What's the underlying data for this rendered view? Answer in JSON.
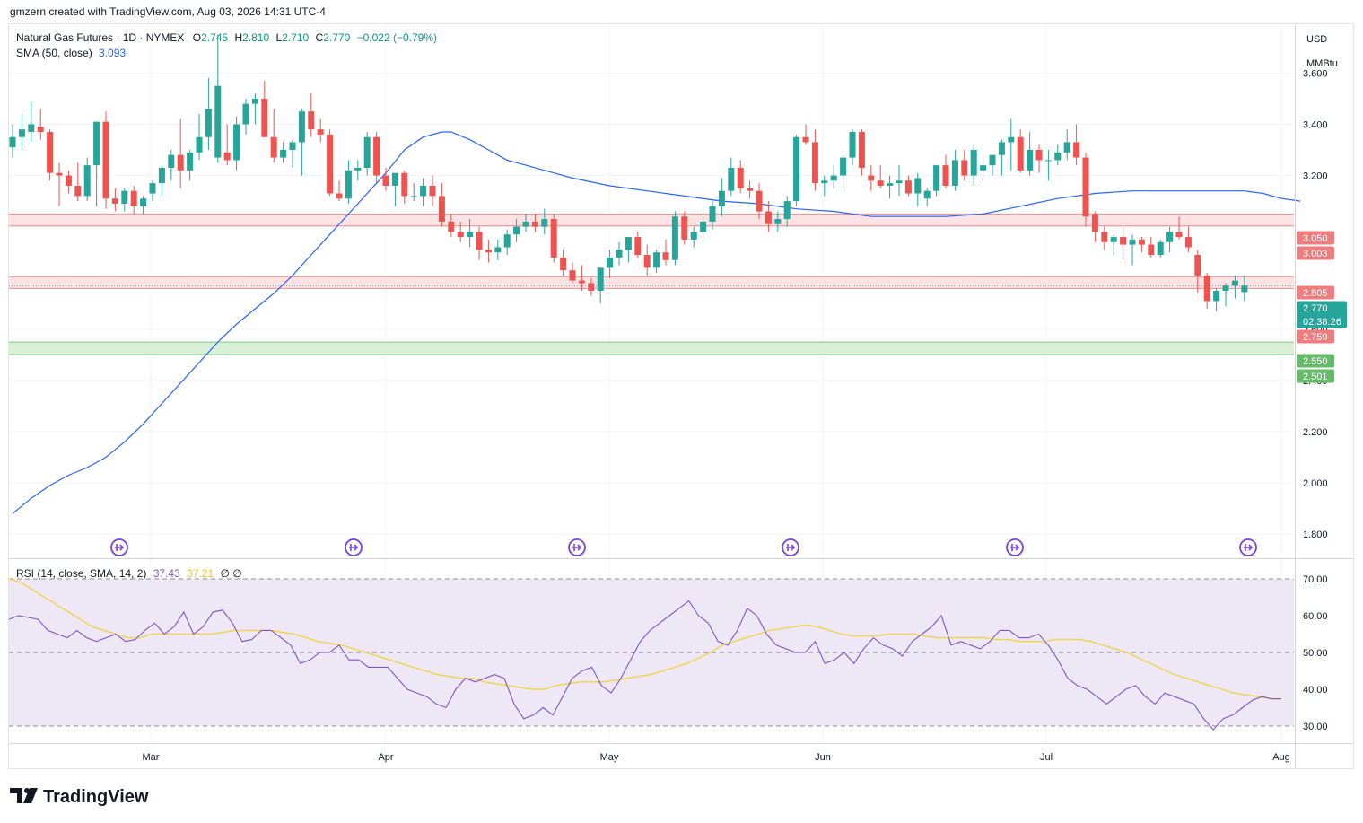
{
  "header": {
    "attribution": "gmzern created with TradingView.com, Aug 03, 2026 14:31 UTC-4",
    "symbol": "Natural Gas Futures · 1D · NYMEX",
    "o_label": "O",
    "o_value": "2.745",
    "h_label": "H",
    "h_value": "2.810",
    "l_label": "L",
    "l_value": "2.710",
    "c_label": "C",
    "c_value": "2.770",
    "change": "−0.022 (−0.79%)",
    "sma_label": "SMA (50, close)",
    "sma_value": "3.093",
    "rsi_label": "RSI (14, close, SMA, 14, 2)",
    "rsi_value": "37.43",
    "rsi_sma_value": "37.21",
    "rsi_extra": "∅  ∅"
  },
  "axis": {
    "currency": "USD",
    "unit": "MMBtu"
  },
  "colors": {
    "up": "#26a69a",
    "down": "#ef5350",
    "sma": "#2962ff",
    "rsi": "#7e57c2",
    "rsi_sma": "#f0d34a",
    "rsi_band": "#ede7f6",
    "resistance_zone": "#fde3e3",
    "support_zone": "#d7f0d6"
  },
  "footer": {
    "logo": "TradingView"
  },
  "events": {
    "icon": "arrow-right-circle-icon",
    "count": 6
  },
  "chart_data": {
    "type": "candlestick",
    "ylim": [
      1.72,
      3.78
    ],
    "yticks": [
      1.8,
      2.0,
      2.2,
      2.4,
      2.6,
      3.2,
      3.4,
      3.6
    ],
    "xticks": [
      "Mar",
      "Apr",
      "May",
      "Jun",
      "Jul",
      "Aug"
    ],
    "price_labels": [
      {
        "value": 3.05,
        "text": "3.050",
        "kind": "resistance"
      },
      {
        "value": 3.003,
        "text": "3.003",
        "kind": "resistance"
      },
      {
        "value": 2.805,
        "text": "2.805",
        "kind": "resistance"
      },
      {
        "value": 2.77,
        "text": "2.770",
        "kind": "last",
        "sub": "02:38:26"
      },
      {
        "value": 2.759,
        "text": "2.759",
        "kind": "resistance"
      },
      {
        "value": 2.55,
        "text": "2.550",
        "kind": "support"
      },
      {
        "value": 2.501,
        "text": "2.501",
        "kind": "support"
      }
    ],
    "zones": [
      {
        "from": 3.003,
        "to": 3.05,
        "kind": "resistance"
      },
      {
        "from": 2.759,
        "to": 2.805,
        "kind": "resistance"
      },
      {
        "from": 2.501,
        "to": 2.55,
        "kind": "support"
      }
    ],
    "candles_ohlc": [
      [
        3.31,
        3.4,
        3.27,
        3.35
      ],
      [
        3.35,
        3.44,
        3.3,
        3.38
      ],
      [
        3.37,
        3.49,
        3.33,
        3.4
      ],
      [
        3.39,
        3.46,
        3.34,
        3.37
      ],
      [
        3.37,
        3.38,
        3.18,
        3.21
      ],
      [
        3.21,
        3.25,
        3.08,
        3.2
      ],
      [
        3.2,
        3.22,
        3.13,
        3.16
      ],
      [
        3.16,
        3.25,
        3.1,
        3.12
      ],
      [
        3.12,
        3.27,
        3.1,
        3.24
      ],
      [
        3.24,
        3.26,
        3.08,
        3.41
      ],
      [
        3.41,
        3.45,
        3.07,
        3.11
      ],
      [
        3.11,
        3.15,
        3.06,
        3.09
      ],
      [
        3.09,
        3.15,
        3.06,
        3.14
      ],
      [
        3.14,
        3.16,
        3.05,
        3.08
      ],
      [
        3.08,
        3.12,
        3.05,
        3.11
      ],
      [
        3.13,
        3.18,
        3.1,
        3.17
      ],
      [
        3.17,
        3.24,
        3.12,
        3.23
      ],
      [
        3.23,
        3.3,
        3.18,
        3.28
      ],
      [
        3.28,
        3.42,
        3.15,
        3.22
      ],
      [
        3.22,
        3.3,
        3.18,
        3.29
      ],
      [
        3.29,
        3.44,
        3.26,
        3.35
      ],
      [
        3.35,
        3.58,
        3.3,
        3.46
      ],
      [
        3.27,
        3.75,
        3.25,
        3.55
      ],
      [
        3.29,
        3.4,
        3.24,
        3.26
      ],
      [
        3.26,
        3.43,
        3.22,
        3.4
      ],
      [
        3.4,
        3.5,
        3.36,
        3.48
      ],
      [
        3.48,
        3.52,
        3.4,
        3.5
      ],
      [
        3.5,
        3.57,
        3.35,
        3.35
      ],
      [
        3.35,
        3.46,
        3.25,
        3.27
      ],
      [
        3.27,
        3.33,
        3.25,
        3.3
      ],
      [
        3.3,
        3.34,
        3.23,
        3.33
      ],
      [
        3.33,
        3.46,
        3.2,
        3.45
      ],
      [
        3.45,
        3.52,
        3.35,
        3.38
      ],
      [
        3.38,
        3.42,
        3.33,
        3.36
      ],
      [
        3.36,
        3.38,
        3.12,
        3.13
      ],
      [
        3.13,
        3.18,
        3.1,
        3.11
      ],
      [
        3.11,
        3.26,
        3.09,
        3.22
      ],
      [
        3.22,
        3.26,
        3.18,
        3.23
      ],
      [
        3.23,
        3.37,
        3.2,
        3.35
      ],
      [
        3.35,
        3.37,
        3.17,
        3.2
      ],
      [
        3.2,
        3.23,
        3.14,
        3.16
      ],
      [
        3.16,
        3.19,
        3.08,
        3.21
      ],
      [
        3.21,
        3.22,
        3.09,
        3.12
      ],
      [
        3.12,
        3.17,
        3.1,
        3.12
      ],
      [
        3.12,
        3.19,
        3.08,
        3.16
      ],
      [
        3.16,
        3.2,
        3.08,
        3.12
      ],
      [
        3.12,
        3.17,
        3.0,
        3.02
      ],
      [
        3.02,
        3.05,
        2.96,
        2.98
      ],
      [
        2.98,
        3.02,
        2.94,
        2.96
      ],
      [
        2.96,
        3.03,
        2.92,
        2.98
      ],
      [
        2.98,
        3.0,
        2.87,
        2.91
      ],
      [
        2.91,
        2.95,
        2.86,
        2.9
      ],
      [
        2.9,
        2.95,
        2.87,
        2.92
      ],
      [
        2.92,
        2.99,
        2.89,
        2.97
      ],
      [
        2.97,
        3.03,
        2.94,
        3.0
      ],
      [
        3.0,
        3.05,
        2.98,
        3.02
      ],
      [
        3.02,
        3.05,
        2.98,
        3.0
      ],
      [
        3.0,
        3.07,
        2.97,
        3.03
      ],
      [
        3.03,
        3.05,
        2.86,
        2.88
      ],
      [
        2.88,
        2.91,
        2.81,
        2.83
      ],
      [
        2.83,
        2.86,
        2.78,
        2.79
      ],
      [
        2.79,
        2.85,
        2.75,
        2.78
      ],
      [
        2.78,
        2.8,
        2.73,
        2.75
      ],
      [
        2.75,
        2.83,
        2.7,
        2.84
      ],
      [
        2.84,
        2.91,
        2.8,
        2.88
      ],
      [
        2.88,
        2.94,
        2.85,
        2.91
      ],
      [
        2.91,
        2.96,
        2.86,
        2.96
      ],
      [
        2.96,
        2.98,
        2.88,
        2.89
      ],
      [
        2.89,
        2.93,
        2.81,
        2.84
      ],
      [
        2.84,
        2.91,
        2.82,
        2.9
      ],
      [
        2.9,
        2.95,
        2.85,
        2.87
      ],
      [
        2.87,
        3.06,
        2.85,
        3.04
      ],
      [
        3.04,
        3.06,
        2.93,
        2.95
      ],
      [
        2.95,
        3.0,
        2.92,
        2.98
      ],
      [
        2.98,
        3.04,
        2.94,
        3.02
      ],
      [
        3.02,
        3.1,
        2.99,
        3.08
      ],
      [
        3.08,
        3.19,
        3.04,
        3.14
      ],
      [
        3.14,
        3.27,
        3.12,
        3.23
      ],
      [
        3.23,
        3.26,
        3.13,
        3.15
      ],
      [
        3.15,
        3.18,
        3.11,
        3.14
      ],
      [
        3.14,
        3.17,
        3.03,
        3.06
      ],
      [
        3.06,
        3.1,
        2.98,
        3.01
      ],
      [
        3.01,
        3.06,
        2.98,
        3.03
      ],
      [
        3.03,
        3.12,
        3.0,
        3.1
      ],
      [
        3.1,
        3.36,
        3.08,
        3.35
      ],
      [
        3.35,
        3.4,
        3.32,
        3.33
      ],
      [
        3.33,
        3.38,
        3.14,
        3.17
      ],
      [
        3.17,
        3.2,
        3.12,
        3.18
      ],
      [
        3.18,
        3.24,
        3.15,
        3.2
      ],
      [
        3.2,
        3.28,
        3.15,
        3.27
      ],
      [
        3.27,
        3.38,
        3.24,
        3.37
      ],
      [
        3.37,
        3.38,
        3.2,
        3.23
      ],
      [
        3.2,
        3.24,
        3.14,
        3.18
      ],
      [
        3.18,
        3.24,
        3.15,
        3.16
      ],
      [
        3.16,
        3.2,
        3.11,
        3.17
      ],
      [
        3.17,
        3.24,
        3.12,
        3.18
      ],
      [
        3.18,
        3.2,
        3.12,
        3.13
      ],
      [
        3.13,
        3.21,
        3.08,
        3.19
      ],
      [
        3.11,
        3.15,
        3.08,
        3.14
      ],
      [
        3.14,
        3.22,
        3.12,
        3.24
      ],
      [
        3.24,
        3.28,
        3.15,
        3.16
      ],
      [
        3.16,
        3.3,
        3.14,
        3.26
      ],
      [
        3.26,
        3.3,
        3.18,
        3.2
      ],
      [
        3.2,
        3.32,
        3.16,
        3.3
      ],
      [
        3.22,
        3.27,
        3.18,
        3.24
      ],
      [
        3.24,
        3.28,
        3.2,
        3.28
      ],
      [
        3.28,
        3.34,
        3.2,
        3.33
      ],
      [
        3.33,
        3.42,
        3.22,
        3.35
      ],
      [
        3.35,
        3.38,
        3.21,
        3.22
      ],
      [
        3.22,
        3.37,
        3.2,
        3.3
      ],
      [
        3.3,
        3.32,
        3.21,
        3.26
      ],
      [
        3.26,
        3.3,
        3.18,
        3.26
      ],
      [
        3.26,
        3.32,
        3.24,
        3.29
      ],
      [
        3.29,
        3.38,
        3.26,
        3.33
      ],
      [
        3.33,
        3.4,
        3.24,
        3.27
      ],
      [
        3.27,
        3.29,
        3.0,
        3.04
      ],
      [
        3.05,
        3.06,
        2.94,
        2.98
      ],
      [
        2.98,
        3.0,
        2.91,
        2.94
      ],
      [
        2.94,
        2.97,
        2.89,
        2.96
      ],
      [
        2.96,
        3.0,
        2.87,
        2.93
      ],
      [
        2.93,
        2.97,
        2.85,
        2.95
      ],
      [
        2.95,
        2.96,
        2.9,
        2.93
      ],
      [
        2.93,
        2.96,
        2.88,
        2.89
      ],
      [
        2.89,
        2.95,
        2.88,
        2.94
      ],
      [
        2.94,
        3.0,
        2.9,
        2.98
      ],
      [
        2.98,
        3.04,
        2.95,
        2.96
      ],
      [
        2.96,
        3.0,
        2.9,
        2.92
      ],
      [
        2.89,
        2.91,
        2.74,
        2.81
      ],
      [
        2.81,
        2.82,
        2.68,
        2.71
      ],
      [
        2.71,
        2.76,
        2.67,
        2.75
      ],
      [
        2.75,
        2.78,
        2.69,
        2.77
      ],
      [
        2.77,
        2.81,
        2.72,
        2.79
      ],
      [
        2.745,
        2.81,
        2.71,
        2.77
      ]
    ],
    "sma50": [
      [
        0,
        1.88
      ],
      [
        2,
        1.94
      ],
      [
        4,
        1.99
      ],
      [
        6,
        2.03
      ],
      [
        8,
        2.06
      ],
      [
        10,
        2.1
      ],
      [
        12,
        2.16
      ],
      [
        14,
        2.23
      ],
      [
        16,
        2.31
      ],
      [
        18,
        2.39
      ],
      [
        20,
        2.47
      ],
      [
        22,
        2.55
      ],
      [
        24,
        2.62
      ],
      [
        26,
        2.68
      ],
      [
        28,
        2.74
      ],
      [
        30,
        2.81
      ],
      [
        32,
        2.89
      ],
      [
        34,
        2.97
      ],
      [
        36,
        3.05
      ],
      [
        38,
        3.13
      ],
      [
        40,
        3.21
      ],
      [
        42,
        3.3
      ],
      [
        44,
        3.35
      ],
      [
        46,
        3.37
      ],
      [
        47,
        3.37
      ],
      [
        49,
        3.34
      ],
      [
        51,
        3.3
      ],
      [
        53,
        3.26
      ],
      [
        55,
        3.24
      ],
      [
        57,
        3.22
      ],
      [
        60,
        3.19
      ],
      [
        64,
        3.16
      ],
      [
        68,
        3.14
      ],
      [
        72,
        3.12
      ],
      [
        76,
        3.1
      ],
      [
        80,
        3.09
      ],
      [
        84,
        3.07
      ],
      [
        88,
        3.06
      ],
      [
        92,
        3.04
      ],
      [
        96,
        3.04
      ],
      [
        100,
        3.04
      ],
      [
        104,
        3.05
      ],
      [
        108,
        3.08
      ],
      [
        112,
        3.11
      ],
      [
        116,
        3.13
      ],
      [
        120,
        3.14
      ],
      [
        124,
        3.14
      ],
      [
        128,
        3.14
      ],
      [
        132,
        3.14
      ],
      [
        134,
        3.13
      ],
      [
        136,
        3.11
      ],
      [
        138,
        3.1
      ]
    ],
    "rsi": {
      "ylim": [
        25,
        72
      ],
      "yticks": [
        30.0,
        40.0,
        50.0,
        60.0,
        70.0
      ],
      "band": [
        30,
        70
      ],
      "rsi": [
        59,
        60,
        59.5,
        59,
        56,
        55,
        54,
        56,
        54,
        53,
        54,
        55,
        53,
        53.5,
        56,
        58,
        55,
        57,
        61,
        55,
        57,
        61,
        61.5,
        58,
        53,
        53.5,
        56,
        56,
        54,
        52,
        47,
        48,
        50,
        50,
        52,
        48,
        48,
        46,
        46,
        46,
        43,
        40,
        39,
        38,
        36,
        35,
        40,
        43,
        42,
        43,
        44,
        43,
        36,
        32,
        33,
        35,
        33,
        38,
        43,
        45,
        46,
        41,
        39,
        43,
        48,
        53,
        56,
        58,
        60,
        62,
        64,
        60,
        58,
        53,
        52,
        56,
        62,
        60,
        55,
        52,
        51,
        50,
        50,
        53,
        47,
        48,
        50,
        47,
        51,
        54,
        52,
        51,
        49,
        53,
        55,
        57,
        60,
        52,
        53,
        52,
        51,
        53,
        56,
        56,
        54,
        54,
        55,
        52,
        48,
        43,
        41,
        40,
        38,
        36,
        38,
        40,
        41,
        38,
        36,
        39,
        38,
        37,
        36,
        32,
        29,
        32,
        33,
        35,
        37,
        38,
        37.4,
        37.43
      ],
      "rsi_sma": [
        70,
        69,
        67,
        65,
        63,
        61,
        59,
        57,
        56,
        55,
        54,
        54,
        55,
        55,
        55,
        55,
        55,
        55,
        55.5,
        56,
        56,
        56,
        56,
        55.5,
        55,
        54,
        53,
        52.5,
        52,
        51,
        50,
        49,
        48,
        47,
        46,
        45,
        44,
        43.5,
        43,
        43,
        42,
        41.5,
        41,
        40.5,
        40,
        40,
        41,
        41.5,
        42,
        42,
        42,
        42.5,
        43,
        43.5,
        44,
        45,
        46,
        47,
        48.5,
        50,
        52,
        53,
        54,
        55,
        56,
        56.5,
        57,
        57.5,
        57,
        56,
        55,
        54.5,
        54.5,
        54.5,
        55,
        55,
        55,
        54.5,
        54,
        54,
        54,
        54,
        54,
        53.5,
        53.5,
        53,
        53,
        53,
        53.5,
        53.5,
        53.5,
        53,
        52,
        51,
        50,
        48.5,
        47,
        45.5,
        44,
        43,
        42,
        41,
        40,
        39,
        38.5,
        38,
        37.5,
        37.21
      ]
    }
  }
}
